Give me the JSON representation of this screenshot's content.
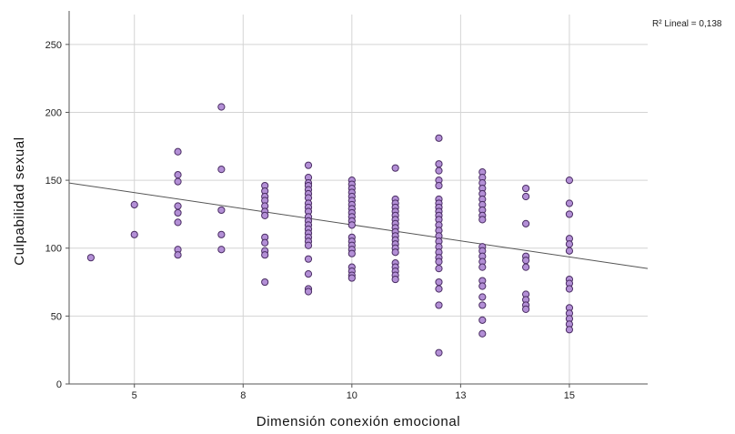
{
  "chart_data": {
    "type": "scatter",
    "xlabel": "Dimensión conexión emocional",
    "ylabel": "Culpabilidad sexual",
    "xlim": [
      3.5,
      16.8
    ],
    "ylim": [
      0,
      272
    ],
    "xticks": [
      {
        "value": 5,
        "label": "5"
      },
      {
        "value": 7.5,
        "label": "8"
      },
      {
        "value": 10,
        "label": "10"
      },
      {
        "value": 12.5,
        "label": "13"
      },
      {
        "value": 15,
        "label": "15"
      }
    ],
    "yticks": [
      0,
      50,
      100,
      150,
      200,
      250
    ],
    "grid": true,
    "colors": {
      "marker_fill": "#b38fd6",
      "marker_stroke": "#4a2d63",
      "fit_line": "#555555",
      "grid": "#d4d4d4"
    },
    "fit_line": {
      "label": "R² Lineal = 0,138",
      "x": [
        3.5,
        16.8
      ],
      "y": [
        148,
        85
      ]
    },
    "series": [
      {
        "points": [
          [
            4,
            93
          ],
          [
            5,
            132
          ],
          [
            5,
            110
          ],
          [
            6,
            171
          ],
          [
            6,
            154
          ],
          [
            6,
            149
          ],
          [
            6,
            131
          ],
          [
            6,
            126
          ],
          [
            6,
            119
          ],
          [
            6,
            99
          ],
          [
            6,
            95
          ],
          [
            7,
            204
          ],
          [
            7,
            158
          ],
          [
            7,
            128
          ],
          [
            7,
            110
          ],
          [
            7,
            99
          ],
          [
            8,
            146
          ],
          [
            8,
            142
          ],
          [
            8,
            138
          ],
          [
            8,
            135
          ],
          [
            8,
            131
          ],
          [
            8,
            127
          ],
          [
            8,
            124
          ],
          [
            8,
            108
          ],
          [
            8,
            104
          ],
          [
            8,
            98
          ],
          [
            8,
            95
          ],
          [
            8,
            75
          ],
          [
            9,
            161
          ],
          [
            9,
            152
          ],
          [
            9,
            148
          ],
          [
            9,
            146
          ],
          [
            9,
            143
          ],
          [
            9,
            140
          ],
          [
            9,
            137
          ],
          [
            9,
            133
          ],
          [
            9,
            130
          ],
          [
            9,
            127
          ],
          [
            9,
            123
          ],
          [
            9,
            120
          ],
          [
            9,
            117
          ],
          [
            9,
            114
          ],
          [
            9,
            111
          ],
          [
            9,
            108
          ],
          [
            9,
            105
          ],
          [
            9,
            102
          ],
          [
            9,
            92
          ],
          [
            9,
            81
          ],
          [
            9,
            70
          ],
          [
            9,
            68
          ],
          [
            10,
            150
          ],
          [
            10,
            147
          ],
          [
            10,
            144
          ],
          [
            10,
            141
          ],
          [
            10,
            138
          ],
          [
            10,
            135
          ],
          [
            10,
            132
          ],
          [
            10,
            129
          ],
          [
            10,
            126
          ],
          [
            10,
            123
          ],
          [
            10,
            120
          ],
          [
            10,
            117
          ],
          [
            10,
            108
          ],
          [
            10,
            105
          ],
          [
            10,
            102
          ],
          [
            10,
            99
          ],
          [
            10,
            96
          ],
          [
            10,
            86
          ],
          [
            10,
            83
          ],
          [
            10,
            80
          ],
          [
            10,
            78
          ],
          [
            11,
            159
          ],
          [
            11,
            136
          ],
          [
            11,
            133
          ],
          [
            11,
            130
          ],
          [
            11,
            127
          ],
          [
            11,
            124
          ],
          [
            11,
            121
          ],
          [
            11,
            118
          ],
          [
            11,
            115
          ],
          [
            11,
            112
          ],
          [
            11,
            109
          ],
          [
            11,
            106
          ],
          [
            11,
            103
          ],
          [
            11,
            100
          ],
          [
            11,
            97
          ],
          [
            11,
            89
          ],
          [
            11,
            86
          ],
          [
            11,
            83
          ],
          [
            11,
            80
          ],
          [
            11,
            77
          ],
          [
            12,
            181
          ],
          [
            12,
            162
          ],
          [
            12,
            157
          ],
          [
            12,
            150
          ],
          [
            12,
            146
          ],
          [
            12,
            136
          ],
          [
            12,
            133
          ],
          [
            12,
            130
          ],
          [
            12,
            127
          ],
          [
            12,
            124
          ],
          [
            12,
            121
          ],
          [
            12,
            117
          ],
          [
            12,
            113
          ],
          [
            12,
            109
          ],
          [
            12,
            105
          ],
          [
            12,
            101
          ],
          [
            12,
            97
          ],
          [
            12,
            93
          ],
          [
            12,
            90
          ],
          [
            12,
            85
          ],
          [
            12,
            75
          ],
          [
            12,
            70
          ],
          [
            12,
            58
          ],
          [
            12,
            23
          ],
          [
            13,
            156
          ],
          [
            13,
            152
          ],
          [
            13,
            148
          ],
          [
            13,
            144
          ],
          [
            13,
            140
          ],
          [
            13,
            136
          ],
          [
            13,
            132
          ],
          [
            13,
            128
          ],
          [
            13,
            124
          ],
          [
            13,
            121
          ],
          [
            13,
            101
          ],
          [
            13,
            98
          ],
          [
            13,
            94
          ],
          [
            13,
            90
          ],
          [
            13,
            86
          ],
          [
            13,
            76
          ],
          [
            13,
            72
          ],
          [
            13,
            64
          ],
          [
            13,
            58
          ],
          [
            13,
            47
          ],
          [
            13,
            37
          ],
          [
            14,
            144
          ],
          [
            14,
            138
          ],
          [
            14,
            118
          ],
          [
            14,
            94
          ],
          [
            14,
            91
          ],
          [
            14,
            86
          ],
          [
            14,
            66
          ],
          [
            14,
            62
          ],
          [
            14,
            58
          ],
          [
            14,
            55
          ],
          [
            15,
            150
          ],
          [
            15,
            133
          ],
          [
            15,
            125
          ],
          [
            15,
            107
          ],
          [
            15,
            103
          ],
          [
            15,
            98
          ],
          [
            15,
            77
          ],
          [
            15,
            74
          ],
          [
            15,
            70
          ],
          [
            15,
            56
          ],
          [
            15,
            52
          ],
          [
            15,
            48
          ],
          [
            15,
            44
          ],
          [
            15,
            40
          ]
        ]
      }
    ]
  }
}
